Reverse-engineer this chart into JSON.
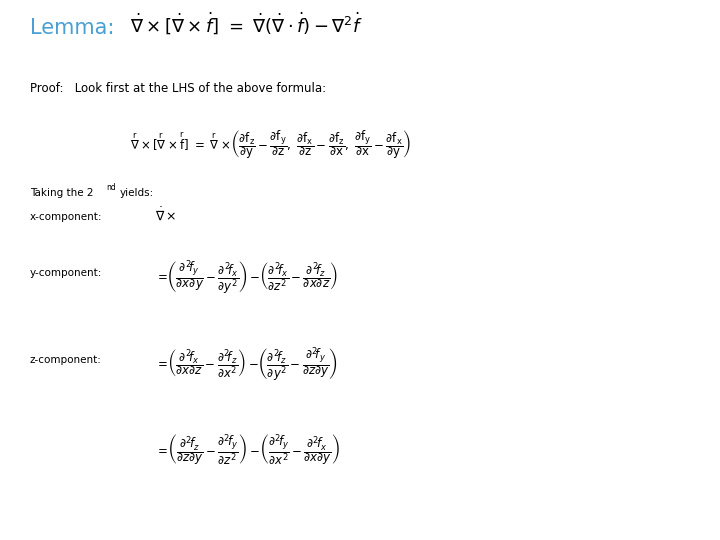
{
  "background_color": "#ffffff",
  "lemma_color": "#4a9fd4",
  "text_color": "#000000",
  "figsize": [
    7.2,
    5.4
  ],
  "dpi": 100,
  "lemma_label": "Lemma:",
  "proof_text": "Proof:   Look first at the LHS of the above formula:",
  "taking_text": "Taking the 2",
  "taking_sup": "nd",
  "yields_text": "yields:",
  "xcomp_label": "x-component:",
  "ycomp_label": "y-component:",
  "zcomp_label": "z-component:"
}
